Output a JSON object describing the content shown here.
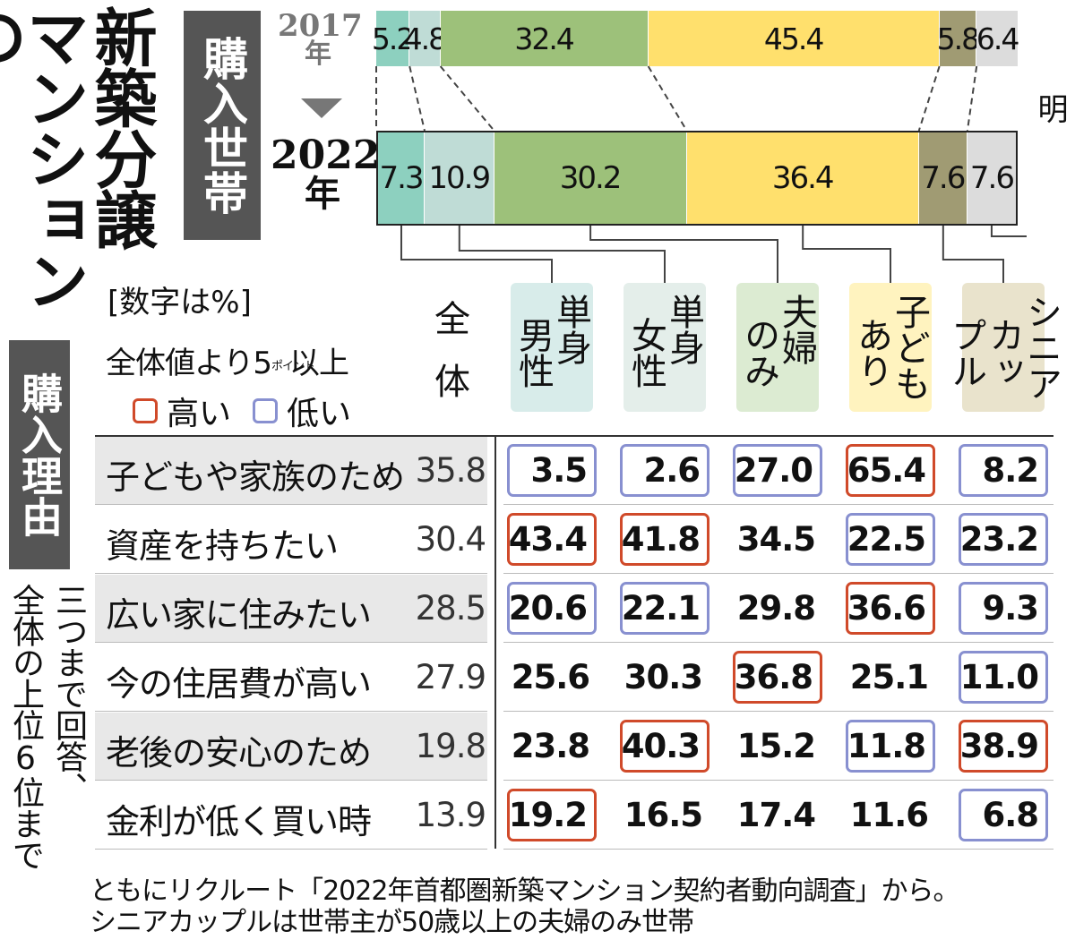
{
  "title": {
    "col1": "マンションの",
    "col2": "新築分譲"
  },
  "section_household": "購入世帯",
  "section_reason": "購入理由",
  "chart_data": [
    {
      "type": "stacked-bar",
      "title": "購入世帯",
      "unit": "%",
      "categories": [
        "単身男性",
        "単身女性",
        "夫婦のみ",
        "子どもあり",
        "シニアカップル",
        "その他・不明"
      ],
      "series": [
        {
          "name": "2017年",
          "label": [
            "2017",
            "年"
          ],
          "values": [
            5.2,
            4.8,
            32.4,
            45.4,
            5.8,
            6.4
          ]
        },
        {
          "name": "2022年",
          "label": [
            "2022",
            "年"
          ],
          "values": [
            7.3,
            10.9,
            30.2,
            36.4,
            7.6,
            7.6
          ]
        }
      ],
      "colors": [
        "#8dd0bf",
        "#bfdcd6",
        "#9dc17a",
        "#ffe06d",
        "#a09b73",
        "#dcdcdc"
      ],
      "other_label": "その他・不明"
    },
    {
      "type": "table",
      "title": "購入理由",
      "unit_note": "[数字は%]",
      "columns": [
        "全体",
        "単身男性",
        "単身女性",
        "夫婦のみ",
        "子どもあり",
        "シニアカップル"
      ],
      "column_headers": [
        {
          "lines": [
            "全",
            "体"
          ]
        },
        {
          "lines": [
            "単身",
            "男性"
          ],
          "color": "#d8ecea"
        },
        {
          "lines": [
            "単身",
            "女性"
          ],
          "color": "#e4eeea"
        },
        {
          "lines": [
            "夫婦",
            "のみ"
          ],
          "color": "#dcebd2"
        },
        {
          "lines": [
            "子ども",
            "あり"
          ],
          "color": "#fff3bf"
        },
        {
          "lines": [
            "シニア",
            "カップル"
          ],
          "color": "#e9e3cc"
        }
      ],
      "rows": [
        {
          "label": "子どもや家族のため",
          "total": "35.8",
          "values": [
            "3.5",
            "2.6",
            "27.0",
            "65.4",
            "8.2"
          ],
          "marks": [
            "lo",
            "lo",
            "lo",
            "hi",
            "lo"
          ]
        },
        {
          "label": "資産を持ちたい",
          "total": "30.4",
          "values": [
            "43.4",
            "41.8",
            "34.5",
            "22.5",
            "23.2"
          ],
          "marks": [
            "hi",
            "hi",
            "",
            "lo",
            "lo"
          ]
        },
        {
          "label": "広い家に住みたい",
          "total": "28.5",
          "values": [
            "20.6",
            "22.1",
            "29.8",
            "36.6",
            "9.3"
          ],
          "marks": [
            "lo",
            "lo",
            "",
            "hi",
            "lo"
          ]
        },
        {
          "label": "今の住居費が高い",
          "total": "27.9",
          "values": [
            "25.6",
            "30.3",
            "36.8",
            "25.1",
            "11.0"
          ],
          "marks": [
            "",
            "",
            "hi",
            "",
            "lo"
          ]
        },
        {
          "label": "老後の安心のため",
          "total": "19.8",
          "values": [
            "23.8",
            "40.3",
            "15.2",
            "11.8",
            "38.9"
          ],
          "marks": [
            "",
            "hi",
            "",
            "lo",
            "hi"
          ]
        },
        {
          "label": "金利が低く買い時",
          "total": "13.9",
          "values": [
            "19.2",
            "16.5",
            "17.4",
            "11.6",
            "6.8"
          ],
          "marks": [
            "hi",
            "",
            "",
            "",
            "lo"
          ]
        }
      ]
    }
  ],
  "legend": {
    "heading_a": "全体値より5",
    "heading_small": "ポイント",
    "heading_b": "以上",
    "high": "高い",
    "low": "低い",
    "high_color": "#d04a2a",
    "low_color": "#8890d0"
  },
  "side_note": {
    "line1": "三つまで回答、",
    "line2": "全体の上位6位まで"
  },
  "footnote": {
    "line1": "ともにリクルート「2022年首都圏新築マンション契約者動向調査」から。",
    "line2": "シニアカップルは世帯主が50歳以上の夫婦のみ世帯"
  }
}
